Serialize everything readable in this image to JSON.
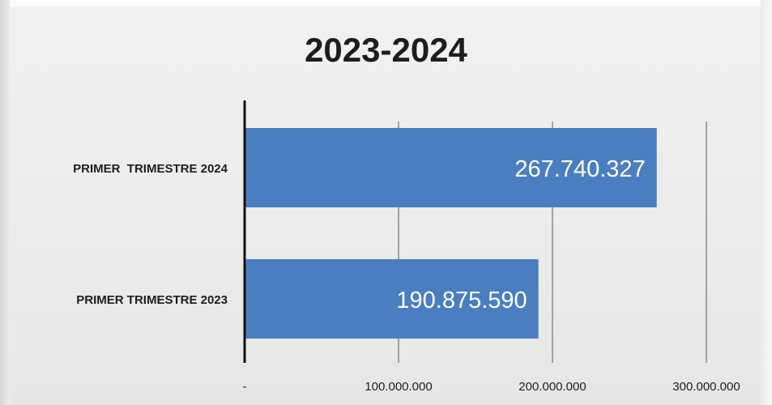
{
  "chart_data": {
    "type": "bar",
    "orientation": "horizontal",
    "title": "2023-2024",
    "categories": [
      "PRIMER  TRIMESTRE 2024",
      "PRIMER TRIMESTRE 2023"
    ],
    "values": [
      267740327,
      190875590
    ],
    "value_labels": [
      "267.740.327",
      "190.875.590"
    ],
    "xlim": [
      0,
      300000000
    ],
    "x_ticks": [
      {
        "value": 0,
        "label": "-"
      },
      {
        "value": 100000000,
        "label": "100.000.000"
      },
      {
        "value": 200000000,
        "label": "200.000.000"
      },
      {
        "value": 300000000,
        "label": "300.000.000"
      }
    ],
    "xlabel": "",
    "ylabel": "",
    "grid": true,
    "legend": "none",
    "colors": {
      "bar": "#4a7ec1",
      "bar_label": "#ffffff",
      "text": "#1d1d1d",
      "axis": "#111111",
      "grid": "#8a8a8a"
    }
  }
}
